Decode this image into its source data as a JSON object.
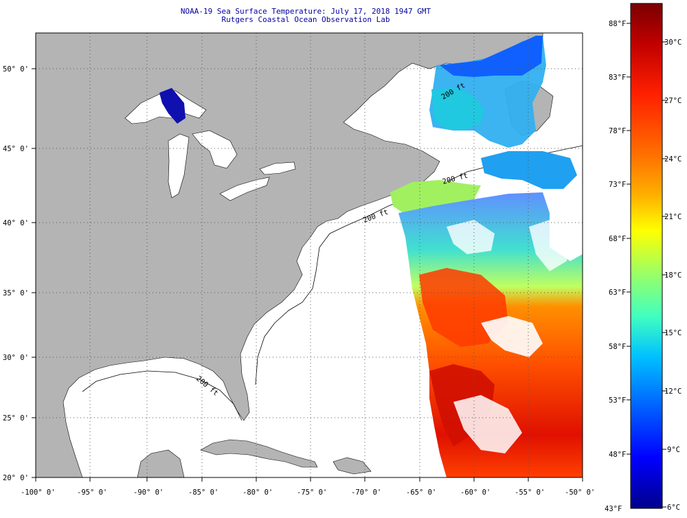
{
  "header": {
    "title": "NOAA-19 Sea Surface Temperature:  July 17, 2018 1947 GMT",
    "subtitle": "Rutgers Coastal Ocean Observation Lab"
  },
  "map": {
    "lon_labels": [
      "-100° 0'",
      "-95° 0'",
      "-90° 0'",
      "-85° 0'",
      "-80° 0'",
      "-75° 0'",
      "-70° 0'",
      "-65° 0'",
      "-60° 0'",
      "-55° 0'",
      "-50° 0'"
    ],
    "lat_labels": [
      "20° 0'",
      "25° 0'",
      "30° 0'",
      "35° 0'",
      "40° 0'",
      "45° 0'",
      "50° 0'"
    ],
    "isobath_label": "200 ft",
    "land_color": "#b4b4b4",
    "ocean_color": "#ffffff"
  },
  "colorbar": {
    "fahrenheit": [
      "88°F",
      "83°F",
      "78°F",
      "73°F",
      "68°F",
      "63°F",
      "58°F",
      "53°F",
      "48°F",
      "43°F"
    ],
    "celsius": [
      "30°C",
      "27°C",
      "24°C",
      "21°C",
      "18°C",
      "15°C",
      "12°C",
      "9°C",
      "6°C"
    ],
    "stops": [
      "#7a0000",
      "#c00000",
      "#ff2000",
      "#ff7000",
      "#ffb000",
      "#ffff00",
      "#a0ff60",
      "#40ffc0",
      "#00c0ff",
      "#0060ff",
      "#0000ff",
      "#00008a"
    ]
  }
}
